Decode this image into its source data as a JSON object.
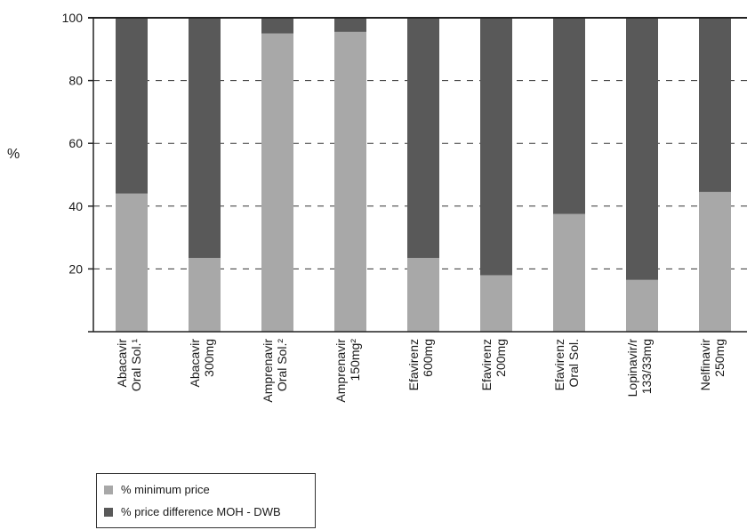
{
  "chart_data": {
    "type": "bar",
    "stacked": true,
    "categories": [
      [
        "Abacavir",
        "Oral Sol.¹"
      ],
      [
        "Abacavir",
        "300mg"
      ],
      [
        "Amprenavir",
        "Oral Sol.²"
      ],
      [
        "Amprenavir",
        "150mg²"
      ],
      [
        "Efavirenz",
        "600mg"
      ],
      [
        "Efavirenz",
        "200mg"
      ],
      [
        "Efavirenz",
        "Oral Sol."
      ],
      [
        "Lopinavir/r",
        "133/33mg"
      ],
      [
        "Nelfinavir",
        "250mg"
      ]
    ],
    "series": [
      {
        "name": "% minimum price",
        "color": "#a8a8a8",
        "values": [
          44,
          23.5,
          95,
          95.5,
          23.5,
          18,
          37.5,
          16.5,
          44.5
        ]
      },
      {
        "name": "% price difference MOH - DWB",
        "color": "#595959",
        "values": [
          56,
          76.5,
          5,
          4.5,
          76.5,
          82,
          62.5,
          83.5,
          55.5
        ]
      }
    ],
    "ylabel": "%",
    "ylim": [
      0,
      100
    ],
    "yticks": [
      20,
      40,
      60,
      80,
      100
    ],
    "grid": "dashed horizontal",
    "legend_position": "bottom-left"
  }
}
